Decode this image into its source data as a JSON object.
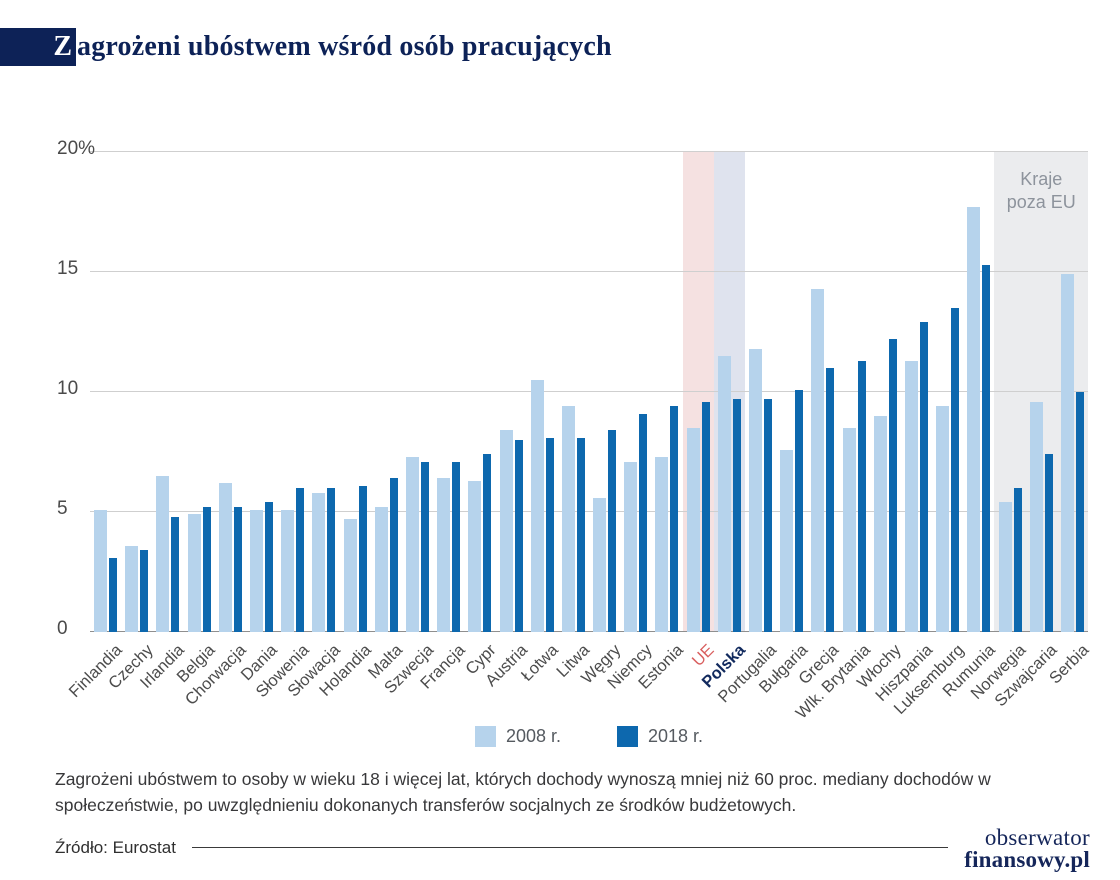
{
  "header": {
    "title_initial": "Z",
    "title_rest": "agrożeni ubóstwem wśród osób pracujących",
    "accent_color": "#0d2257"
  },
  "chart_data": {
    "type": "bar",
    "title": "Zagrożeni ubóstwem wśród osób pracujących",
    "ylabel": "%",
    "ylim": [
      0,
      20
    ],
    "grid": true,
    "legend_position": "bottom",
    "y_ticks": [
      {
        "label": "20%",
        "value": 20
      },
      {
        "label": "15",
        "value": 15
      },
      {
        "label": "10",
        "value": 10
      },
      {
        "label": "5",
        "value": 5
      },
      {
        "label": "0",
        "value": 0
      }
    ],
    "categories": [
      "Finlandia",
      "Czechy",
      "Irlandia",
      "Belgia",
      "Chorwacja",
      "Dania",
      "Słowenia",
      "Słowacja",
      "Holandia",
      "Malta",
      "Szwecja",
      "Francja",
      "Cypr",
      "Austria",
      "Łotwa",
      "Litwa",
      "Węgry",
      "Niemcy",
      "Estonia",
      "UE",
      "Polska",
      "Portugalia",
      "Bułgaria",
      "Grecja",
      "Wlk. Brytania",
      "Włochy",
      "Hiszpania",
      "Luksemburg",
      "Rumunia",
      "Norwegia",
      "Szwajcaria",
      "Serbia"
    ],
    "series": [
      {
        "name": "2008 r.",
        "color": "#b6d3ec",
        "values": [
          5.1,
          3.6,
          6.5,
          4.9,
          6.2,
          5.1,
          5.1,
          5.8,
          4.7,
          5.2,
          7.3,
          6.4,
          6.3,
          8.4,
          10.5,
          9.4,
          5.6,
          7.1,
          7.3,
          8.5,
          11.5,
          11.8,
          7.6,
          14.3,
          8.5,
          9.0,
          11.3,
          9.4,
          17.7,
          5.4,
          9.6,
          14.9
        ]
      },
      {
        "name": "2018 r.",
        "color": "#0d68ae",
        "values": [
          3.1,
          3.4,
          4.8,
          5.2,
          5.2,
          5.4,
          6.0,
          6.0,
          6.1,
          6.4,
          7.1,
          7.1,
          7.4,
          8.0,
          8.1,
          8.1,
          8.4,
          9.1,
          9.4,
          9.6,
          9.7,
          9.7,
          10.1,
          11.0,
          11.3,
          12.2,
          12.9,
          13.5,
          15.3,
          6.0,
          7.4,
          10.0
        ]
      }
    ],
    "bands": [
      {
        "name": "ue-highlight-band",
        "start": "UE",
        "end": "UE",
        "color": "#f5e1e1"
      },
      {
        "name": "poland-highlight-band",
        "start": "Polska",
        "end": "Polska",
        "color": "#dfe3ee"
      },
      {
        "name": "non-eu-band",
        "start": "Norwegia",
        "end": "Serbia",
        "color": "#ebecee",
        "label": "Kraje poza EU",
        "label_color": "#8d939c"
      }
    ],
    "x_label_styles": {
      "UE": {
        "color": "#d95f5f",
        "bold": false
      },
      "Polska": {
        "color": "#122a5e",
        "bold": true
      }
    }
  },
  "footnote": "Zagrożeni ubóstwem to osoby w wieku 18 i więcej lat, których dochody wynoszą mniej niż 60 proc. mediany dochodów w społeczeństwie, po uwzględnieniu dokonanych transferów socjalnych ze środków budżetowych.",
  "source": "Źródło: Eurostat",
  "logo": {
    "line1": "obserwator",
    "line2": "finansowy.pl"
  }
}
